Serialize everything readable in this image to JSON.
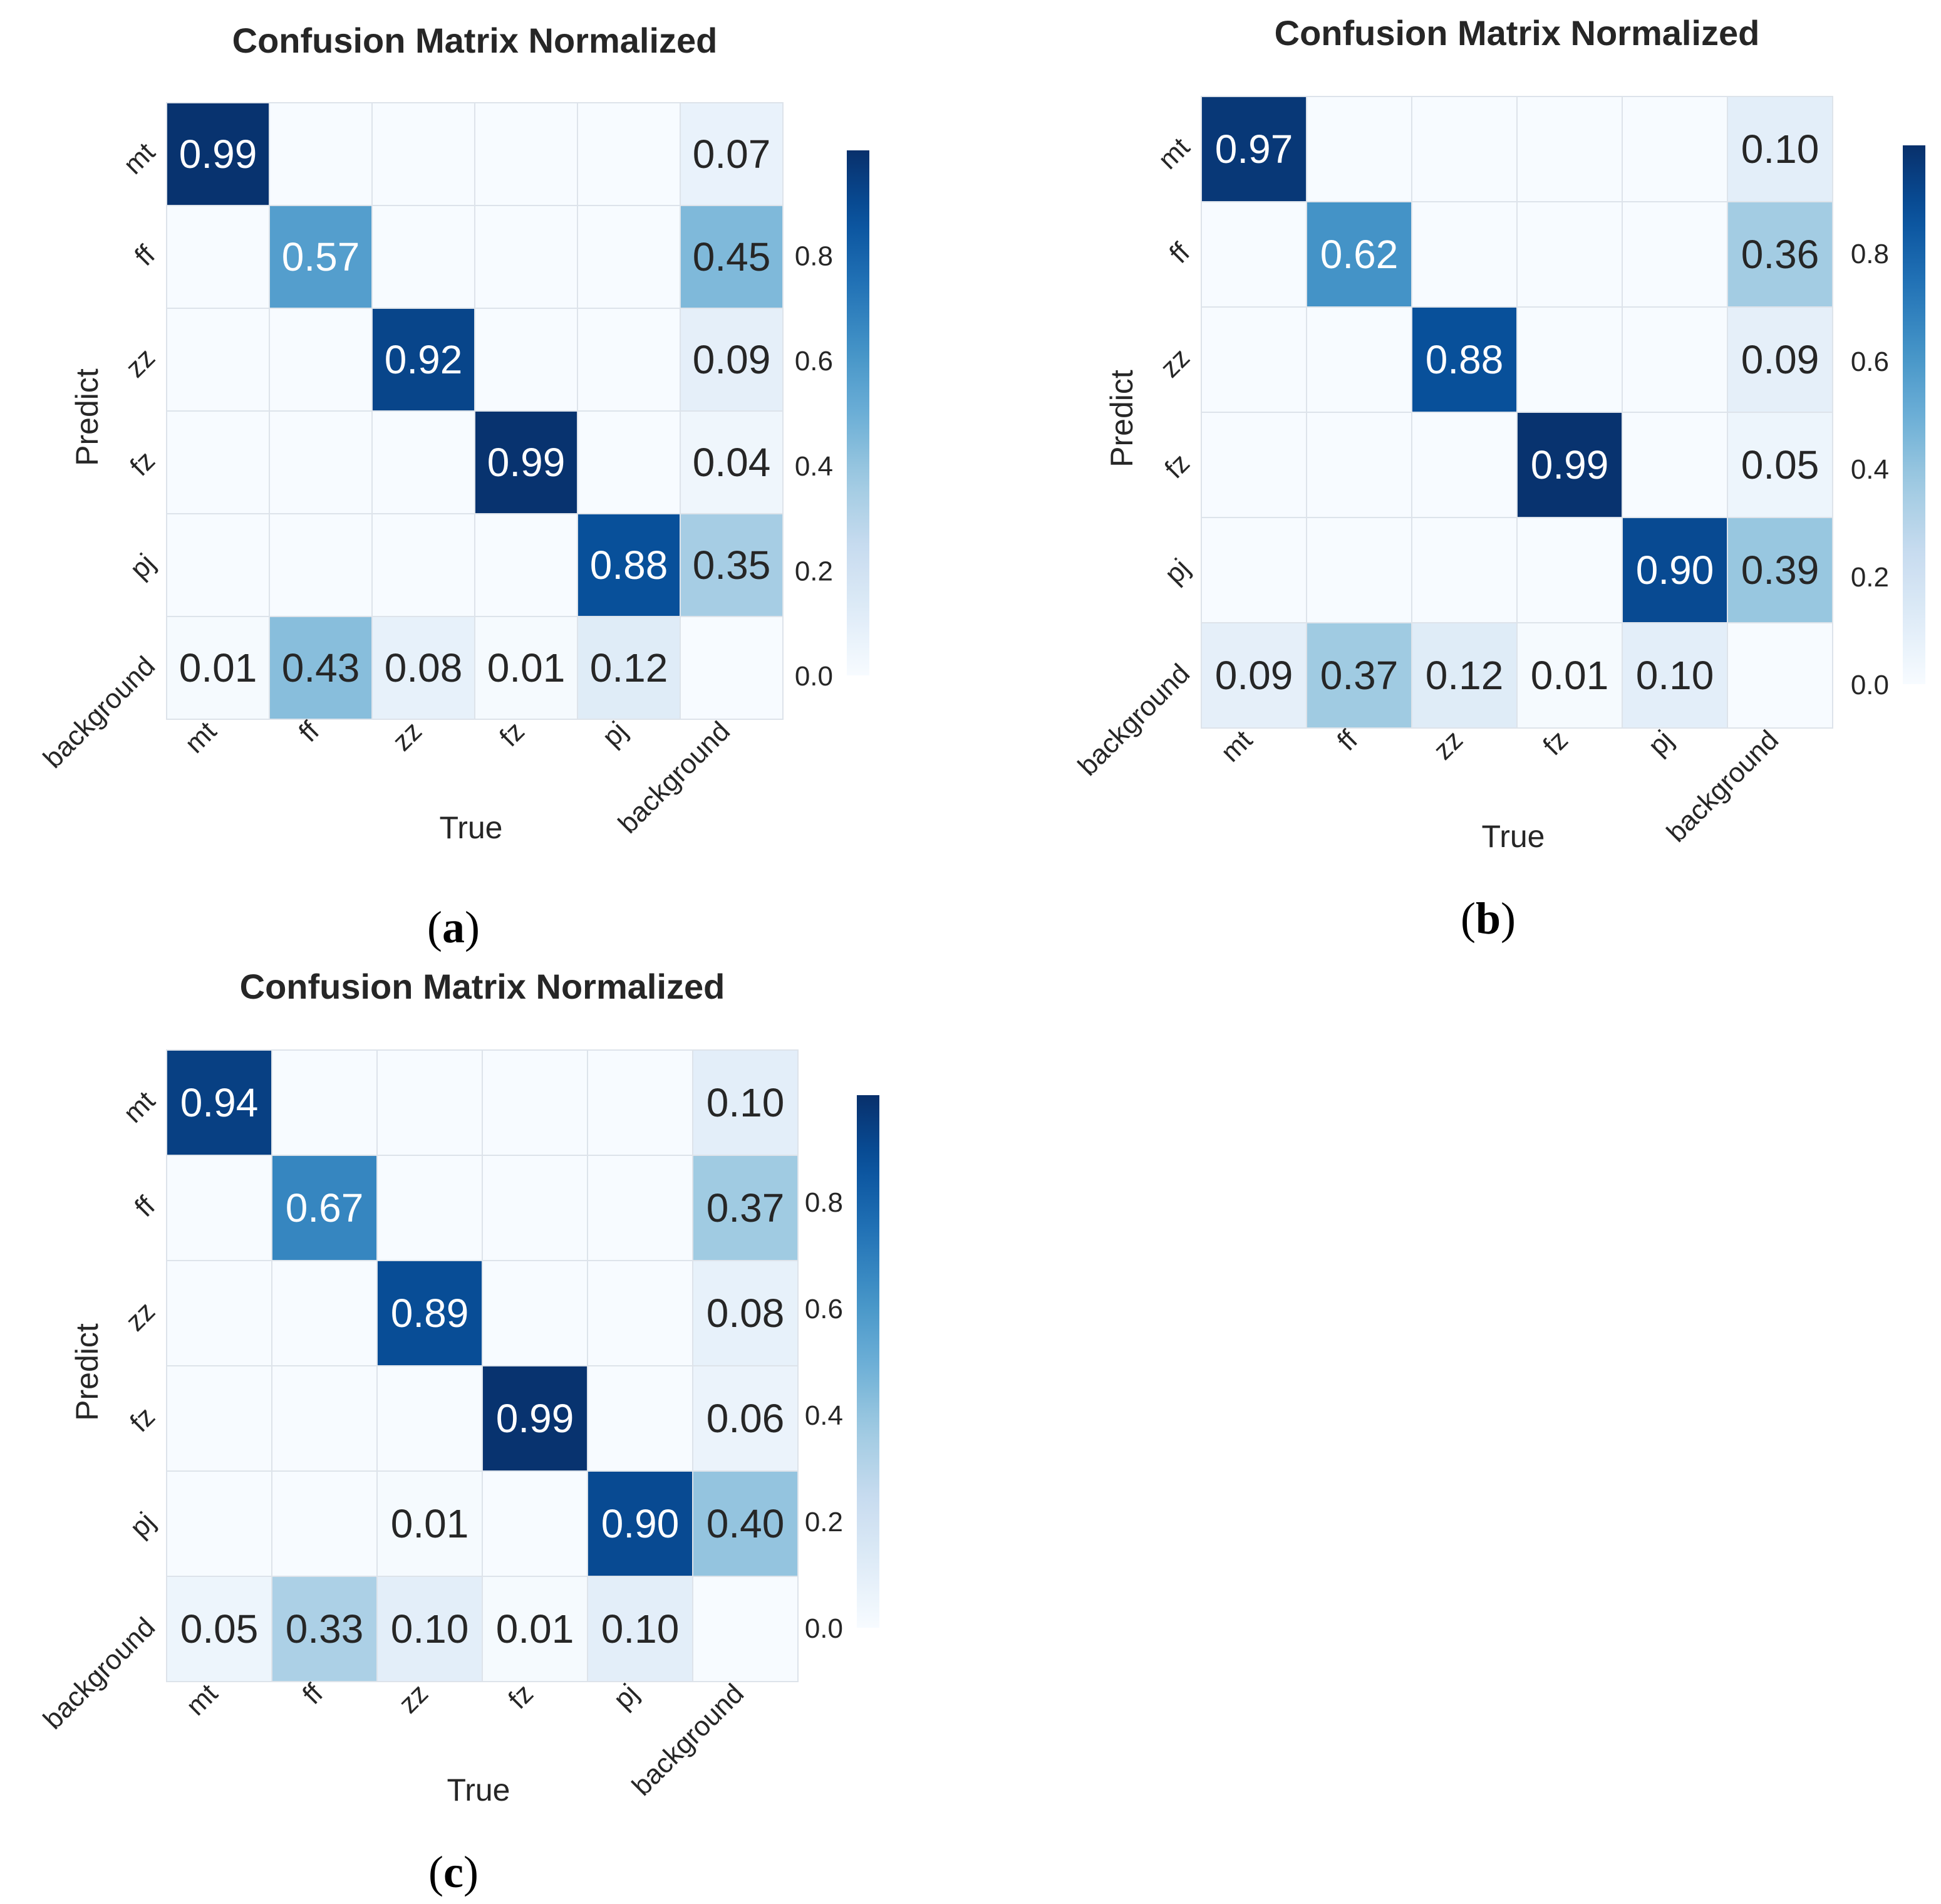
{
  "colors": {
    "cmap_low": "#f7fbff",
    "cmap_high": "#08306b",
    "grid_line": "#dde3ea",
    "text_dark": "#262626",
    "text_light": "#ffffff"
  },
  "chart_data": [
    {
      "type": "heatmap",
      "panel_label": "(a)",
      "panel_letter": "a",
      "title": "Confusion Matrix Normalized",
      "xlabel": "True",
      "ylabel": "Predict",
      "x_categories": [
        "mt",
        "ff",
        "zz",
        "fz",
        "pj",
        "background"
      ],
      "y_categories": [
        "mt",
        "ff",
        "zz",
        "fz",
        "pj",
        "background"
      ],
      "values": [
        [
          0.99,
          null,
          null,
          null,
          null,
          0.07
        ],
        [
          null,
          0.57,
          null,
          null,
          null,
          0.45
        ],
        [
          null,
          null,
          0.92,
          null,
          null,
          0.09
        ],
        [
          null,
          null,
          null,
          0.99,
          null,
          0.04
        ],
        [
          null,
          null,
          null,
          null,
          0.88,
          0.35
        ],
        [
          0.01,
          0.43,
          0.08,
          0.01,
          0.12,
          null
        ]
      ],
      "colorbar": {
        "range": [
          0,
          1
        ],
        "ticks": [
          "0.0",
          "0.2",
          "0.4",
          "0.6",
          "0.8"
        ]
      }
    },
    {
      "type": "heatmap",
      "panel_label": "(b)",
      "panel_letter": "b",
      "title": "Confusion Matrix Normalized",
      "xlabel": "True",
      "ylabel": "Predict",
      "x_categories": [
        "mt",
        "ff",
        "zz",
        "fz",
        "pj",
        "background"
      ],
      "y_categories": [
        "mt",
        "ff",
        "zz",
        "fz",
        "pj",
        "background"
      ],
      "values": [
        [
          0.97,
          null,
          null,
          null,
          null,
          0.1
        ],
        [
          null,
          0.62,
          null,
          null,
          null,
          0.36
        ],
        [
          null,
          null,
          0.88,
          null,
          null,
          0.09
        ],
        [
          null,
          null,
          null,
          0.99,
          null,
          0.05
        ],
        [
          null,
          null,
          null,
          null,
          0.9,
          0.39
        ],
        [
          0.09,
          0.37,
          0.12,
          0.01,
          0.1,
          null
        ]
      ],
      "colorbar": {
        "range": [
          0,
          1
        ],
        "ticks": [
          "0.0",
          "0.2",
          "0.4",
          "0.6",
          "0.8"
        ]
      }
    },
    {
      "type": "heatmap",
      "panel_label": "(c)",
      "panel_letter": "c",
      "title": "Confusion Matrix Normalized",
      "xlabel": "True",
      "ylabel": "Predict",
      "x_categories": [
        "mt",
        "ff",
        "zz",
        "fz",
        "pj",
        "background"
      ],
      "y_categories": [
        "mt",
        "ff",
        "zz",
        "fz",
        "pj",
        "background"
      ],
      "values": [
        [
          0.94,
          null,
          null,
          null,
          null,
          0.1
        ],
        [
          null,
          0.67,
          null,
          null,
          null,
          0.37
        ],
        [
          null,
          null,
          0.89,
          null,
          null,
          0.08
        ],
        [
          null,
          null,
          null,
          0.99,
          null,
          0.06
        ],
        [
          null,
          null,
          0.01,
          null,
          0.9,
          0.4
        ],
        [
          0.05,
          0.33,
          0.1,
          0.01,
          0.1,
          null
        ]
      ],
      "colorbar": {
        "range": [
          0,
          1
        ],
        "ticks": [
          "0.0",
          "0.2",
          "0.4",
          "0.6",
          "0.8"
        ]
      }
    }
  ]
}
